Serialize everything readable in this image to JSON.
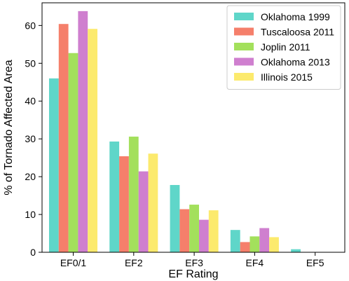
{
  "chart_data": {
    "type": "bar",
    "xlabel": "EF Rating",
    "ylabel": "% of Tornado Affected Area",
    "categories": [
      "EF0/1",
      "EF2",
      "EF3",
      "EF4",
      "EF5"
    ],
    "ylim": [
      0,
      66
    ],
    "yticks": [
      0,
      10,
      20,
      30,
      40,
      50,
      60
    ],
    "legend_position": "top-right",
    "series": [
      {
        "name": "Oklahoma 1999",
        "color": "#5fd6c9",
        "values": [
          46.0,
          29.3,
          17.8,
          5.9,
          0.8
        ]
      },
      {
        "name": "Tuscaloosa 2011",
        "color": "#f57f6b",
        "values": [
          60.4,
          25.4,
          11.4,
          2.7,
          0.0
        ]
      },
      {
        "name": "Joplin 2011",
        "color": "#a3e05c",
        "values": [
          52.7,
          30.6,
          12.6,
          4.2,
          0.0
        ]
      },
      {
        "name": "Oklahoma 2013",
        "color": "#cf7fcf",
        "values": [
          63.8,
          21.4,
          8.6,
          6.4,
          0.0
        ]
      },
      {
        "name": "Illinois 2015",
        "color": "#fcea6d",
        "values": [
          59.1,
          26.1,
          11.1,
          4.0,
          0.0
        ]
      }
    ]
  }
}
